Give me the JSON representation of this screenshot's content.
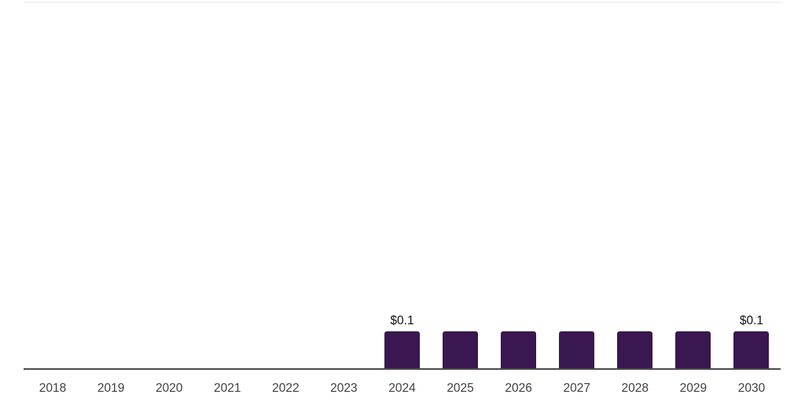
{
  "chart_data": {
    "type": "bar",
    "title": "",
    "xlabel": "",
    "ylabel": "",
    "categories": [
      "2018",
      "2019",
      "2020",
      "2021",
      "2022",
      "2023",
      "2024",
      "2025",
      "2026",
      "2027",
      "2028",
      "2029",
      "2030"
    ],
    "values": [
      null,
      null,
      null,
      null,
      null,
      null,
      0.1,
      0.1,
      0.1,
      0.1,
      0.1,
      0.1,
      0.1
    ],
    "bar_labels": [
      null,
      null,
      null,
      null,
      null,
      null,
      "$0.1",
      null,
      null,
      null,
      null,
      null,
      "$0.1"
    ],
    "value_prefix": "$",
    "ylim": [
      0,
      1
    ],
    "grid": false,
    "legend": false,
    "colors": {
      "bar": "#3a1750",
      "axis_line": "#4a4a4a",
      "top_border": "#f2f2f2",
      "tick_label": "#3f3f3f",
      "data_label": "#111111",
      "background": "#ffffff"
    }
  }
}
